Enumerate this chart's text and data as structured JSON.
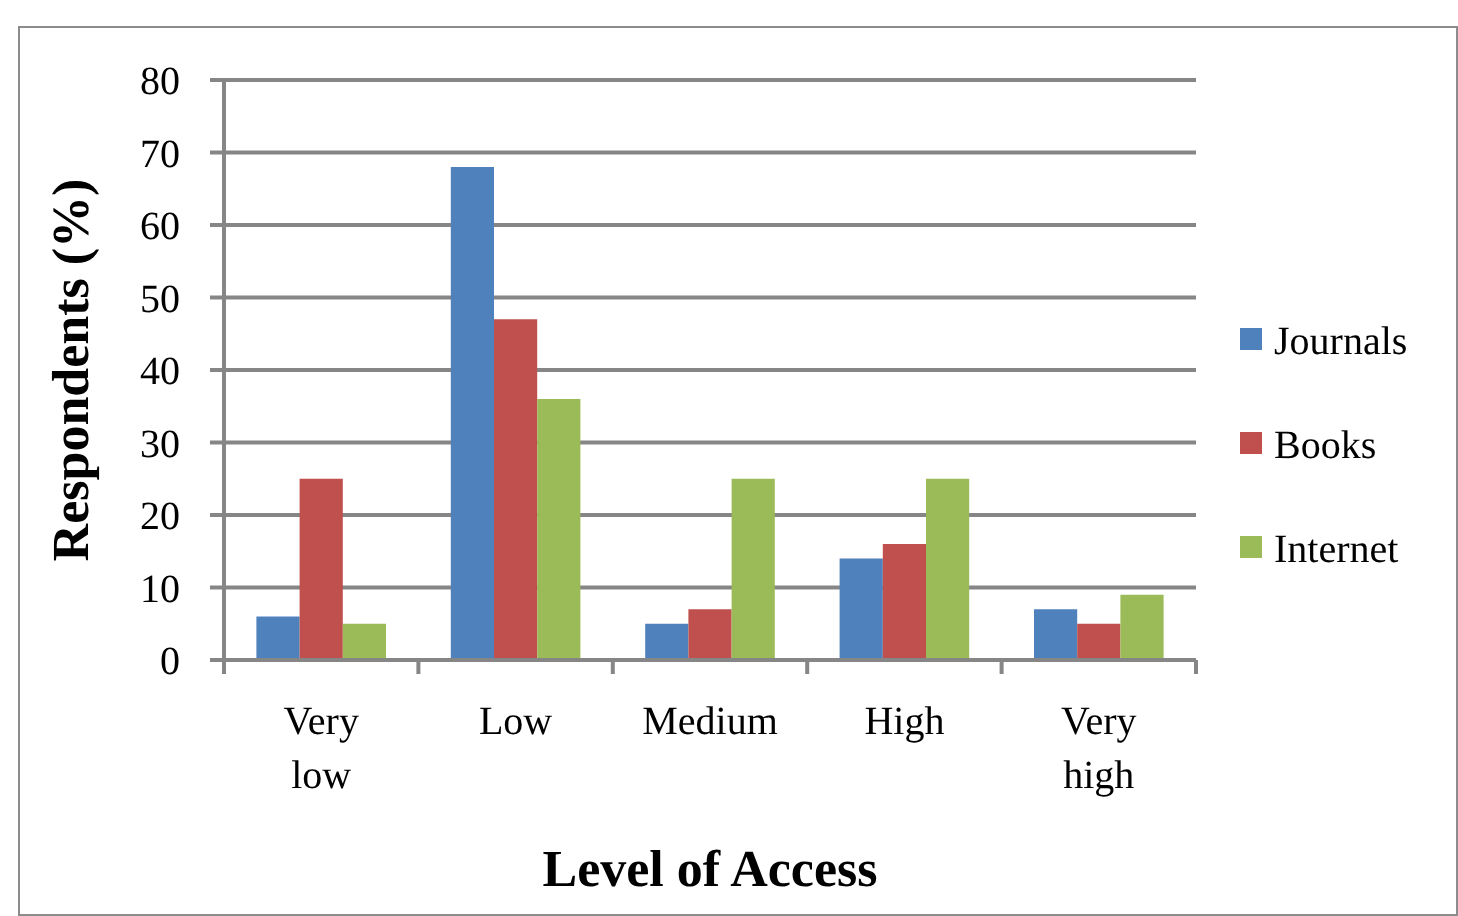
{
  "chart_data": {
    "type": "bar",
    "xlabel": "Level of Access",
    "ylabel": "Respondents (%)",
    "categories": [
      "Very low",
      "Low",
      "Medium",
      "High",
      "Very high"
    ],
    "series": [
      {
        "name": "Journals",
        "color": "#4f81bd",
        "values": [
          6,
          68,
          5,
          14,
          7
        ]
      },
      {
        "name": "Books",
        "color": "#c0504d",
        "values": [
          25,
          47,
          7,
          16,
          5
        ]
      },
      {
        "name": "Internet",
        "color": "#9bbb59",
        "values": [
          5,
          36,
          25,
          25,
          9
        ]
      }
    ],
    "ylim": [
      0,
      80
    ],
    "yticks": [
      0,
      10,
      20,
      30,
      40,
      50,
      60,
      70,
      80
    ],
    "grid": "y",
    "legend": "right"
  }
}
